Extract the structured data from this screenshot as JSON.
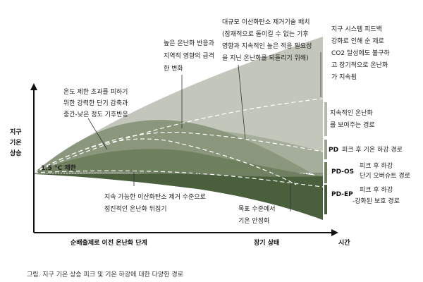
{
  "axes": {
    "y_label_lines": [
      "지구",
      "기온",
      "상승"
    ],
    "x_label": "시간",
    "threshold_label": "1.5 °C 제한",
    "phase_before": "순배출제로 이전 온난화 단계",
    "phase_long": "장기 상태"
  },
  "annotations": {
    "top_left": [
      "온도 제한 초과를 피하기",
      "위한 강력한 단기 감축과",
      "중간-낮은 정도 기후반응"
    ],
    "top_mid": [
      "높은 온난화 반응과",
      "지역적 영향의 급격",
      "한 변화"
    ],
    "top_center": [
      "대규모 이산화탄소 제거기술 배치",
      "(잠재적으로 돌이킬 수 없는 기후",
      "영향과 지속적인 높은 적응 필요성",
      "을 지닌 온난화를 되돌리기 위해)"
    ],
    "top_right": [
      "지구 시스템 피드백",
      "강화로 인해 순 제로",
      "CO2 달성에도 불구하",
      "고 장기적으로 온난화",
      "가 지속됨"
    ],
    "bottom_left": [
      "지속 가능한 이산화탄소 제거 수준으로",
      "점진적인 온난화 뒤집기"
    ],
    "bottom_mid": [
      "목표 수준에서",
      "기온 안정화"
    ]
  },
  "pathways": [
    {
      "code": "",
      "lines": [
        "지속적인 온난화",
        "를 보여주는 경로"
      ],
      "color": "#b4b8ad"
    },
    {
      "code": "PD",
      "lines": [
        "피크 후 기온 하강 경로"
      ],
      "color": "#9aa390"
    },
    {
      "code": "PD-OS",
      "lines": [
        "피크 후 하강",
        "단기 오버슈트 경로"
      ],
      "color": "#6f805e"
    },
    {
      "code": "PD-EP",
      "lines": [
        "피크 후 하강",
        "-강화된 보호 경로"
      ],
      "color": "#455a36"
    }
  ],
  "caption": "그림. 지구 기온 상승 피크 및 기온 하강에 대한 다양한 경로"
}
